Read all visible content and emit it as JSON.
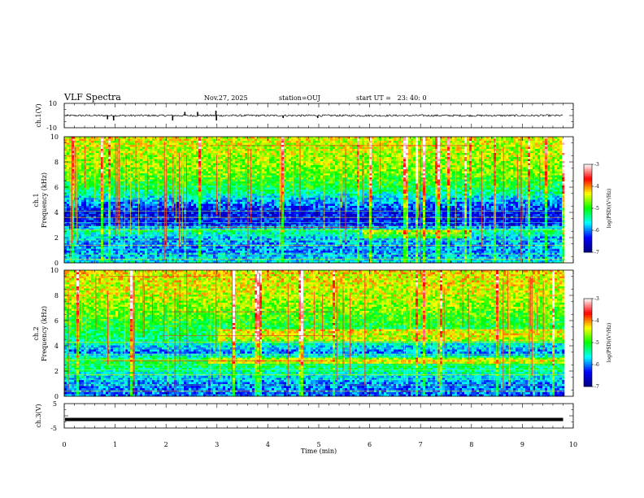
{
  "header": {
    "title": "VLF Spectra",
    "date": "Nov.27, 2025",
    "station": "station=OUJ",
    "start_ut": "start UT =   23: 40: 0"
  },
  "colors": {
    "background": "#ffffff",
    "axis": "#000000",
    "colormap": [
      "#00007f",
      "#0000ff",
      "#00ffff",
      "#00ff00",
      "#ffff00",
      "#ff0000",
      "#ffffff"
    ]
  },
  "chart_data": [
    {
      "type": "line",
      "panel": "ch1-waveform",
      "ylabel": "ch.1(V)",
      "ylim": [
        -10,
        10
      ],
      "ytick_labels": [
        "10",
        "-10"
      ],
      "xlim": [
        0,
        10
      ],
      "baseline": 0,
      "noise_amplitude": 0.8,
      "spikes": [
        {
          "t": 0.85,
          "v": -3
        },
        {
          "t": 0.97,
          "v": -4
        },
        {
          "t": 2.13,
          "v": -4
        },
        {
          "t": 2.37,
          "v": 3
        },
        {
          "t": 2.62,
          "v": 3
        },
        {
          "t": 2.98,
          "v": 4
        },
        {
          "t": 2.99,
          "v": -4
        },
        {
          "t": 4.3,
          "v": -2
        },
        {
          "t": 4.98,
          "v": -2
        }
      ],
      "data_end_min": 9.8
    },
    {
      "type": "heatmap",
      "panel": "ch1-spectrogram",
      "ylabel": "ch.1\nFrequency (kHz)",
      "ylim": [
        0,
        10
      ],
      "ytick_labels": [
        "0",
        "2",
        "4",
        "6",
        "8",
        "10"
      ],
      "xlim": [
        0,
        10
      ],
      "data_end_min": 9.8,
      "log_psd_profile": [
        {
          "f": 0.0,
          "v": -5.6
        },
        {
          "f": 1.0,
          "v": -6.0
        },
        {
          "f": 2.0,
          "v": -5.8
        },
        {
          "f": 2.5,
          "v": -5.3
        },
        {
          "f": 3.0,
          "v": -6.3
        },
        {
          "f": 4.0,
          "v": -6.4
        },
        {
          "f": 5.0,
          "v": -5.8
        },
        {
          "f": 6.0,
          "v": -5.1
        },
        {
          "f": 7.0,
          "v": -4.8
        },
        {
          "f": 8.0,
          "v": -4.6
        },
        {
          "f": 10.0,
          "v": -4.4
        }
      ],
      "colorbar": {
        "label": "log(PSD)(V²/Hz)",
        "range": [
          -7,
          -3
        ],
        "tick_labels": [
          "-3",
          "-4",
          "-5",
          "-6",
          "-7"
        ]
      }
    },
    {
      "type": "heatmap",
      "panel": "ch2-spectrogram",
      "ylabel": "ch.2\nFrequency (kHz)",
      "ylim": [
        0,
        10
      ],
      "ytick_labels": [
        "0",
        "2",
        "4",
        "6",
        "8",
        "10"
      ],
      "xlim": [
        0,
        10
      ],
      "data_end_min": 9.8,
      "log_psd_profile": [
        {
          "f": 0.0,
          "v": -6.1
        },
        {
          "f": 1.0,
          "v": -6.0
        },
        {
          "f": 2.0,
          "v": -5.4
        },
        {
          "f": 2.8,
          "v": -5.0
        },
        {
          "f": 3.5,
          "v": -6.0
        },
        {
          "f": 4.5,
          "v": -5.3
        },
        {
          "f": 5.5,
          "v": -5.1
        },
        {
          "f": 7.0,
          "v": -4.7
        },
        {
          "f": 8.0,
          "v": -4.5
        },
        {
          "f": 10.0,
          "v": -4.3
        }
      ],
      "colorbar": {
        "label": "log(PSD)(V²/Hz)",
        "range": [
          -7,
          -3
        ],
        "tick_labels": [
          "-3",
          "-4",
          "-5",
          "-6",
          "-7"
        ]
      }
    },
    {
      "type": "line",
      "panel": "ch3-waveform",
      "ylabel": "ch.3(V)",
      "ylim": [
        -5,
        5
      ],
      "ytick_labels": [
        "5",
        "-5"
      ],
      "xlim": [
        0,
        10
      ],
      "baseline": -1.5,
      "data_end_min": 9.8
    }
  ],
  "x_axis": {
    "label": "Time (min)",
    "tick_labels": [
      "0",
      "1",
      "2",
      "3",
      "4",
      "5",
      "6",
      "7",
      "8",
      "9",
      "10"
    ]
  }
}
